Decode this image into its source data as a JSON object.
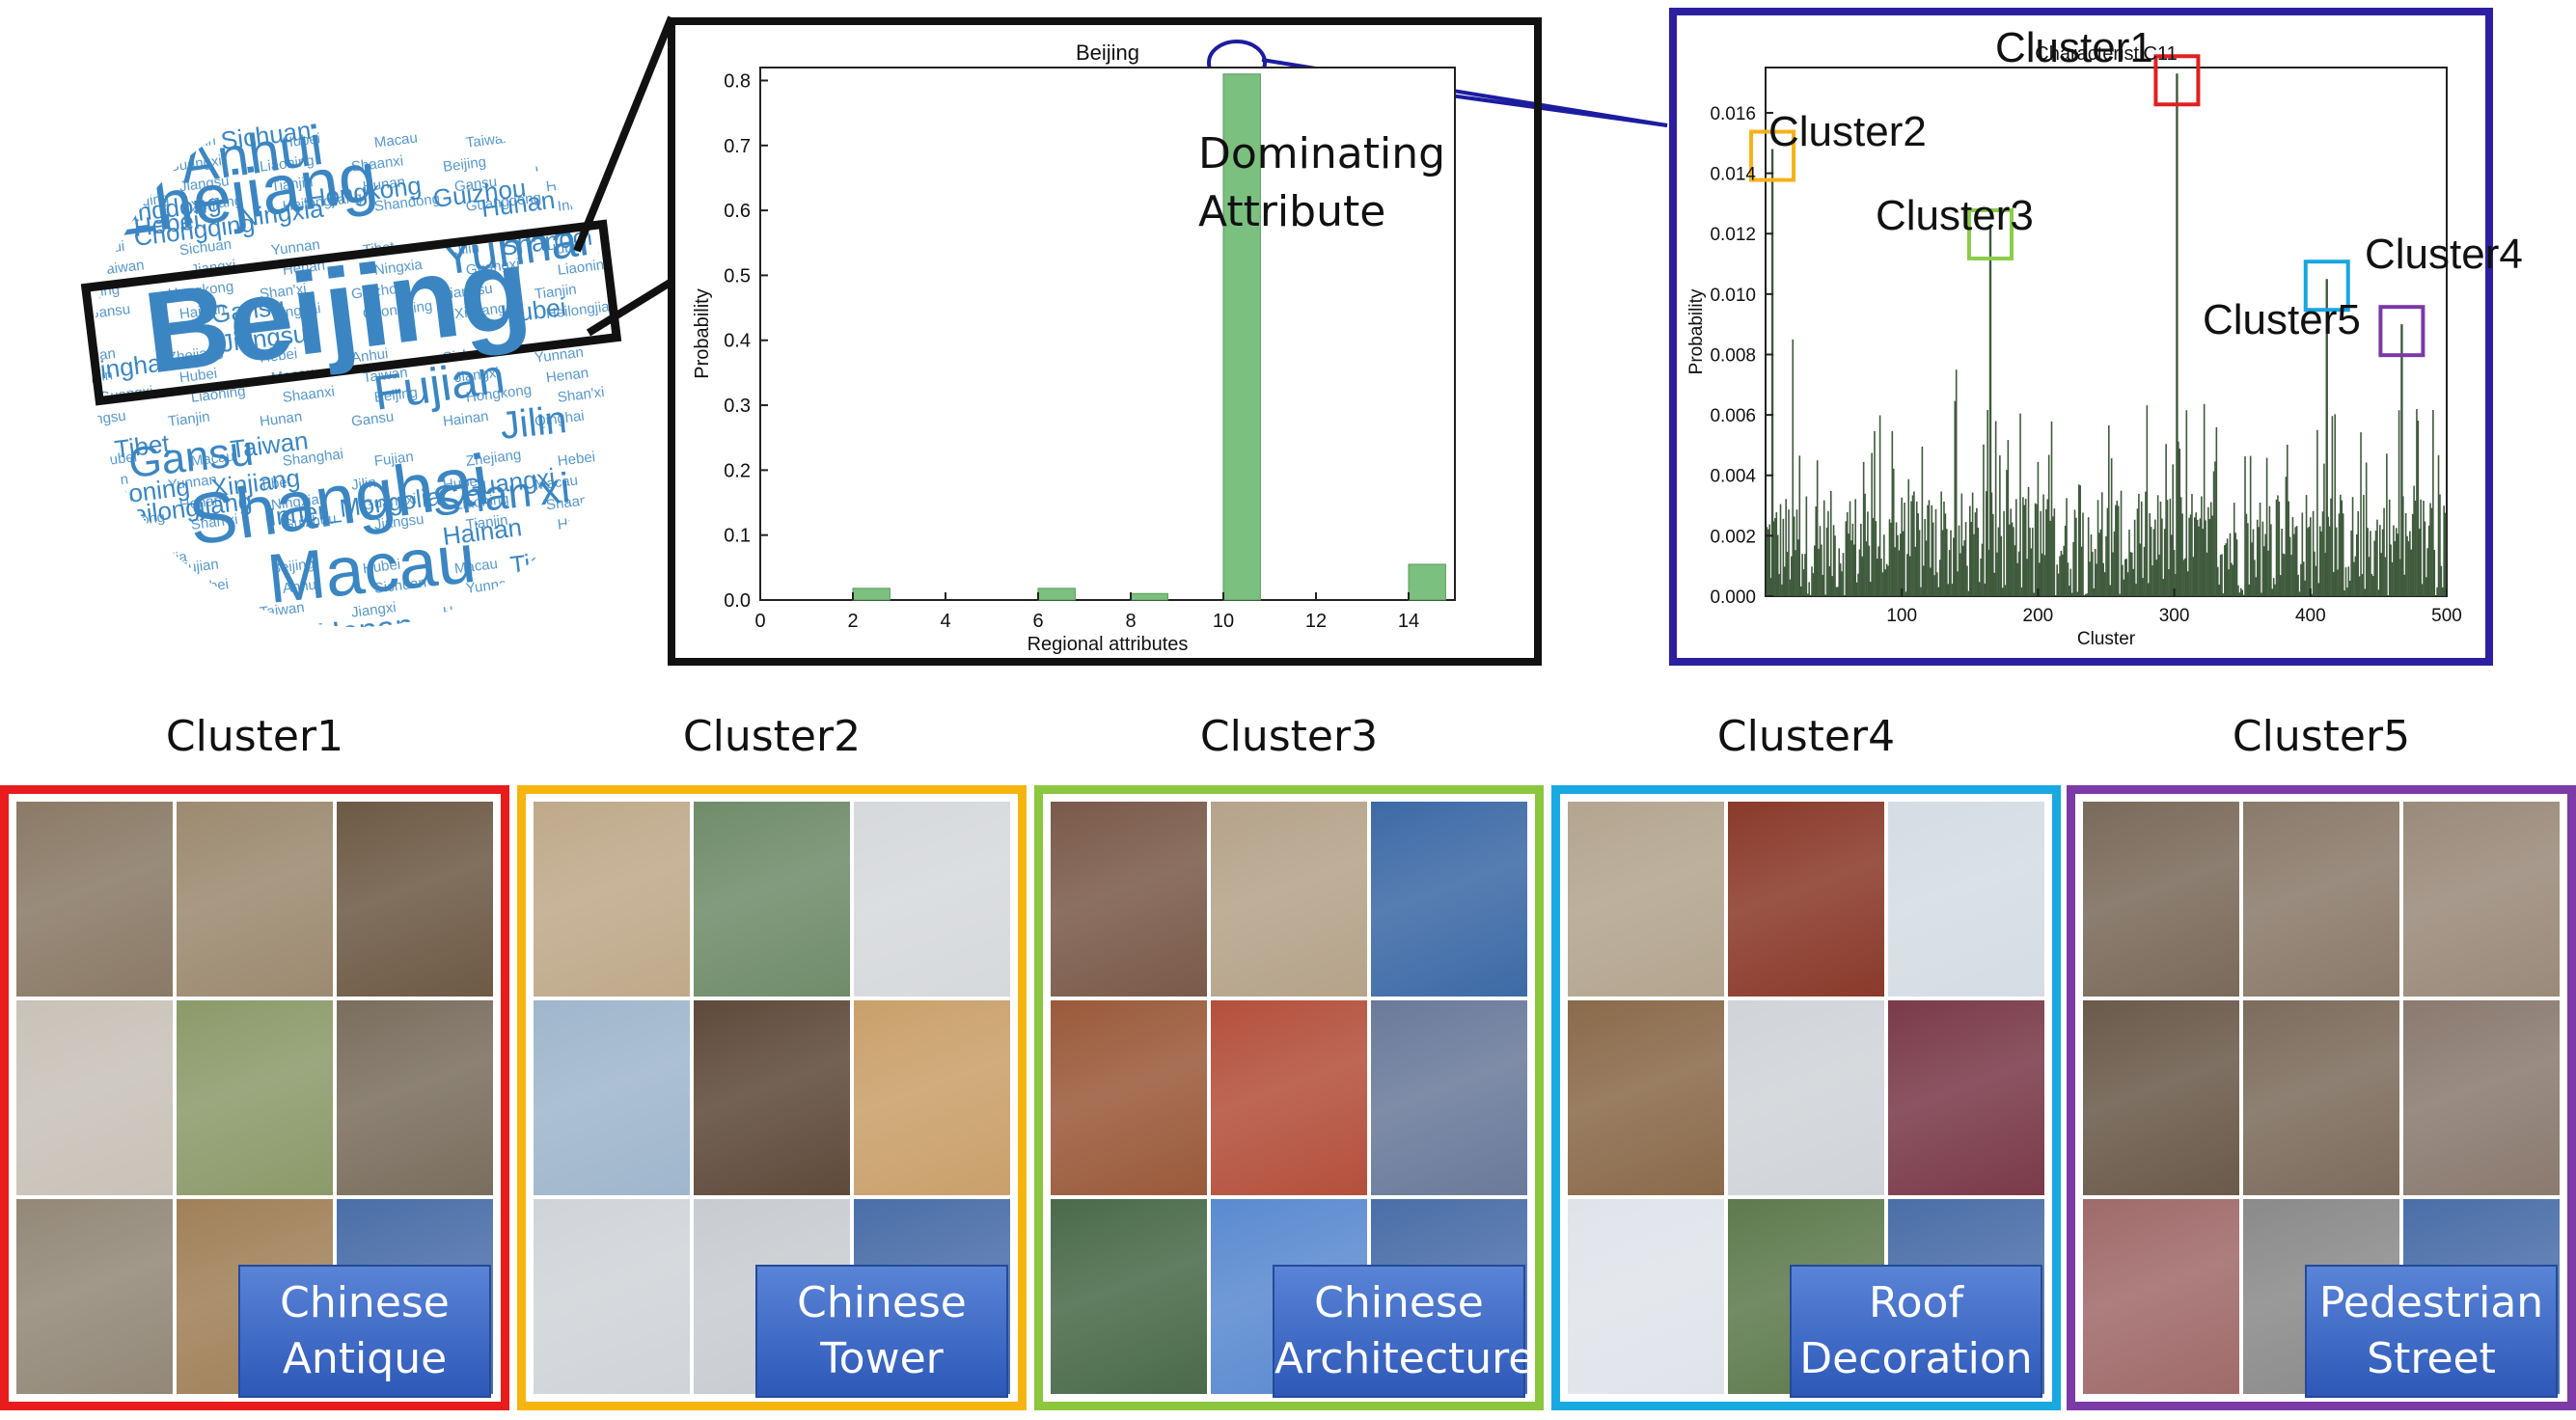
{
  "word_cloud": {
    "highlight": "Beijing",
    "big": [
      "Zhejiang",
      "Shanghai",
      "Macau",
      "Anhui",
      "Yunnan",
      "Fujian",
      "Shan'xi",
      "Jilin",
      "Gansu",
      "Henan"
    ],
    "medium": [
      "Sichuan",
      "Hebei",
      "Guizhou",
      "Ningxia",
      "Hongkong",
      "Hunan",
      "Shandong",
      "Jiangsu",
      "Tianjin",
      "Hubei",
      "Tibet",
      "Liaoning",
      "Guangxi",
      "Xinjiang",
      "Inner_Mongolia",
      "Taiwan",
      "Chongqing",
      "Qinghai",
      "Heilongjiang",
      "Hainan",
      "Guangdong",
      "Gansu"
    ],
    "small": [
      "Shanghai",
      "Fujian",
      "Zhejiang",
      "Hebei",
      "Anhui",
      "Sichuan",
      "Yunnan",
      "Tibet",
      "Jilin",
      "Hubei",
      "Macau",
      "Taiwan",
      "Jiangxi",
      "Henan",
      "Ningxia",
      "Guangxi",
      "Liaoning",
      "Shaanxi",
      "Beijing",
      "Hongkong",
      "Shan'xi",
      "Guizhou",
      "Jiangsu",
      "Tianjin",
      "Hunan",
      "Gansu",
      "Hainan",
      "Qinghai",
      "Chongqing",
      "Xinjiang",
      "Heilongjiang",
      "Shandong",
      "Guangdong",
      "Inner_Mongolia",
      "Fujian",
      "Beijing",
      "Hubei",
      "Macau"
    ]
  },
  "annotation": {
    "dominating_line1": "Dominating",
    "dominating_line2": "Attribute",
    "cluster_labels": [
      "Cluster1",
      "Cluster2",
      "Cluster3",
      "Cluster4",
      "Cluster5"
    ]
  },
  "chart_data": [
    {
      "type": "bar",
      "title": "Beijing",
      "xlabel": "Regional attributes",
      "ylabel": "Probability",
      "xlim": [
        0,
        15
      ],
      "ylim": [
        0,
        0.82
      ],
      "xticks": [
        0,
        2,
        4,
        6,
        8,
        10,
        12,
        14
      ],
      "yticks": [
        "0.0",
        "0.1",
        "0.2",
        "0.3",
        "0.4",
        "0.5",
        "0.6",
        "0.7",
        "0.8"
      ],
      "bar_color": "#7cc080",
      "bars": [
        {
          "x": 2,
          "value": 0.018
        },
        {
          "x": 6,
          "value": 0.018
        },
        {
          "x": 8,
          "value": 0.01
        },
        {
          "x": 10,
          "value": 0.81
        },
        {
          "x": 14,
          "value": 0.055
        }
      ]
    },
    {
      "type": "bar",
      "title": "CharacteristiC11",
      "xlabel": "Cluster",
      "ylabel": "Probability",
      "xlim": [
        0,
        500
      ],
      "ylim": [
        0,
        0.0175
      ],
      "xticks": [
        100,
        200,
        300,
        400,
        500
      ],
      "yticks": [
        "0.000",
        "0.002",
        "0.004",
        "0.006",
        "0.008",
        "0.010",
        "0.012",
        "0.014",
        "0.016"
      ],
      "bar_color": "#3f5a3c",
      "peaks": [
        {
          "label": "Cluster1",
          "x": 302,
          "value": 0.0173,
          "box_color": "#e02020"
        },
        {
          "label": "Cluster2",
          "x": 5,
          "value": 0.0148,
          "box_color": "#f4b21a"
        },
        {
          "label": "Cluster3",
          "x": 165,
          "value": 0.0122,
          "box_color": "#8ccc4a"
        },
        {
          "label": "Cluster4",
          "x": 412,
          "value": 0.0105,
          "box_color": "#1aa6e0"
        },
        {
          "label": "Cluster5",
          "x": 467,
          "value": 0.009,
          "box_color": "#7a3aa8"
        }
      ]
    }
  ],
  "clusters": [
    {
      "title": "Cluster1",
      "border_color": "#e81c1c",
      "caption_line1": "Chinese",
      "caption_line2": "Antique",
      "tiles": [
        "terracotta-warriors",
        "bronze-bust",
        "stone-lion",
        "confucius-statue",
        "garden-statue",
        "stone-relief",
        "stone-lion-2",
        "wall-relief",
        "caption"
      ]
    },
    {
      "title": "Cluster2",
      "border_color": "#f5b50e",
      "caption_line1": "Chinese",
      "caption_line2": "Tower",
      "tiles": [
        "round-pavilion",
        "stone-pagoda",
        "wooden-pagoda",
        "red-pagoda",
        "temple-gate",
        "wild-goose-pagoda",
        "three-pagodas",
        "pagoda-roofs",
        "caption"
      ]
    },
    {
      "title": "Cluster3",
      "border_color": "#8cc63f",
      "caption_line1": "Chinese",
      "caption_line2": "Architecture",
      "tiles": [
        "tiananmen",
        "forbidden-city-hall",
        "palace-roof",
        "red-hall",
        "courtyard-gate",
        "blue-gate",
        "ornate-gate",
        "sky",
        "caption"
      ]
    },
    {
      "title": "Cluster4",
      "border_color": "#19a9e1",
      "caption_line1": "Roof",
      "caption_line2": "Decoration",
      "tiles": [
        "carved-eaves",
        "painted-ridge",
        "dragon-sculpture",
        "curved-eave",
        "ridge-beasts",
        "red-roof",
        "roof-corner",
        "green-roof",
        "caption"
      ]
    },
    {
      "title": "Cluster5",
      "border_color": "#7b3aa6",
      "caption_line1": "Pedestrian",
      "caption_line2": "Street",
      "tiles": [
        "market-street",
        "crowded-street",
        "shopping-street",
        "old-street",
        "lane-crowd",
        "tiled-street",
        "umbrella-market",
        "tree-street",
        "caption"
      ]
    }
  ]
}
